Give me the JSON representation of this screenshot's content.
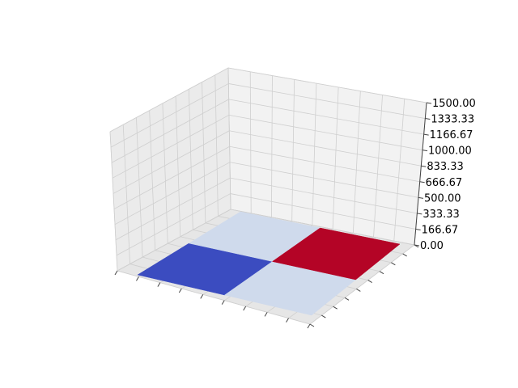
{
  "chart_data": {
    "type": "surface",
    "title": "",
    "xlabel": "",
    "ylabel": "",
    "zlabel": "",
    "zlim": [
      0,
      1500
    ],
    "z_tick_labels": [
      "0.00",
      "166.67",
      "333.33",
      "500.00",
      "666.67",
      "833.33",
      "1000.00",
      "1166.67",
      "1333.33",
      "1500.00"
    ],
    "grid": true,
    "colormap": "coolwarm",
    "surface_cells": [
      {
        "row": 0,
        "col": 0,
        "value": 0,
        "color": "#3b4cc0"
      },
      {
        "row": 0,
        "col": 1,
        "value": 0,
        "color": "#cfdaec"
      },
      {
        "row": 1,
        "col": 0,
        "value": 0,
        "color": "#cfdaec"
      },
      {
        "row": 1,
        "col": 1,
        "value": 0,
        "color": "#b40426"
      }
    ]
  }
}
